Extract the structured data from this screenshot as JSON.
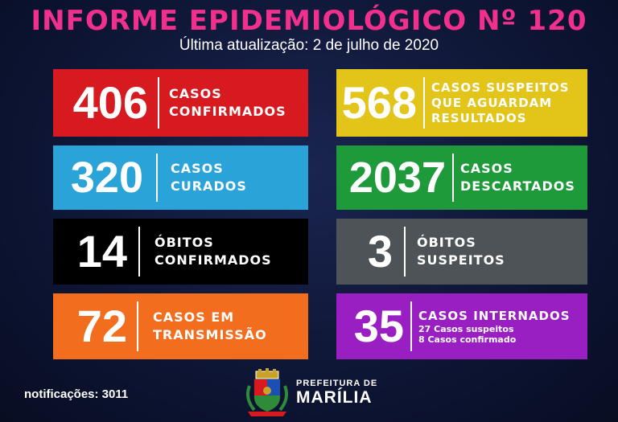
{
  "header": {
    "title": "INFORME EPIDEMIOLÓGICO Nº 120",
    "subtitle": "Última atualização: 2 de julho de 2020"
  },
  "cards": [
    {
      "number": "406",
      "label1": "CASOS",
      "label2": "CONFIRMADOS",
      "color": "#d71920"
    },
    {
      "number": "568",
      "label1": "CASOS SUSPEITOS",
      "label2": "QUE AGUARDAM",
      "label3": "RESULTADOS",
      "color": "#e3c51a"
    },
    {
      "number": "320",
      "label1": "CASOS",
      "label2": "CURADOS",
      "color": "#2aa3d8"
    },
    {
      "number": "2037",
      "label1": "CASOS",
      "label2": "DESCARTADOS",
      "color": "#1f9a3a"
    },
    {
      "number": "14",
      "label1": "ÓBITOS",
      "label2": "CONFIRMADOS",
      "color": "#000000"
    },
    {
      "number": "3",
      "label1": "ÓBITOS",
      "label2": "SUSPEITOS",
      "color": "#4d5357"
    },
    {
      "number": "72",
      "label1": "CASOS EM",
      "label2": "TRANSMISSÃO",
      "color": "#f26d1e"
    },
    {
      "number": "35",
      "label1": "CASOS INTERNADOS",
      "sub1": "27 Casos suspeitos",
      "sub2": "8 Casos confirmado",
      "color": "#9a1fc2"
    }
  ],
  "footer": {
    "notifications": "notificações: 3011",
    "brand_line1": "PREFEITURA DE",
    "brand_line2": "MARÍLIA"
  }
}
